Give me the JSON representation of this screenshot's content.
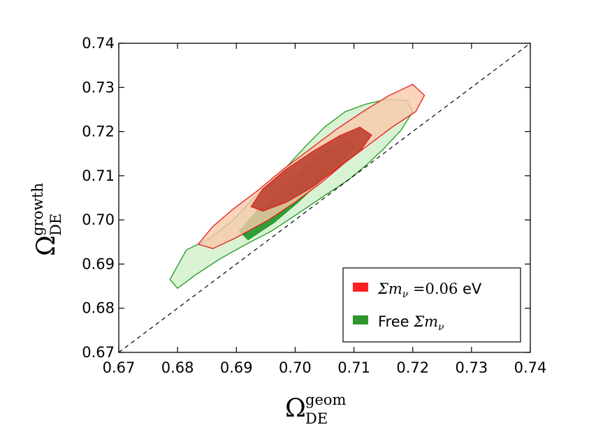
{
  "chart_data": {
    "type": "contour",
    "xlim": [
      0.67,
      0.74
    ],
    "ylim": [
      0.67,
      0.74
    ],
    "x_ticks": [
      "0.67",
      "0.68",
      "0.69",
      "0.70",
      "0.71",
      "0.72",
      "0.73",
      "0.74"
    ],
    "y_ticks": [
      "0.67",
      "0.68",
      "0.69",
      "0.70",
      "0.71",
      "0.72",
      "0.73",
      "0.74"
    ],
    "xlabel": {
      "base": "Ω",
      "sup": "geom",
      "sub": "DE"
    },
    "ylabel": {
      "base": "Ω",
      "sup": "growth",
      "sub": "DE"
    },
    "reference_line": {
      "style": "dashed",
      "from": [
        0.67,
        0.67
      ],
      "to": [
        0.74,
        0.74
      ]
    },
    "legend": {
      "position": "lower-right",
      "entries": [
        {
          "label_math": "Σm",
          "label_sub": "ν",
          "label_eq": " =0.06",
          "label_suffix": " eV",
          "color": "#ff2020"
        },
        {
          "label_prefix": "Free ",
          "label_math": "Σm",
          "label_sub": "ν",
          "color": "#2e962e"
        }
      ]
    },
    "series": [
      {
        "name": "Free Σmν 95%",
        "fill": "#d9f2d4",
        "stroke": "#1f9a1f",
        "points": [
          [
            0.6787,
            0.6865
          ],
          [
            0.6815,
            0.6932
          ],
          [
            0.6855,
            0.6958
          ],
          [
            0.6895,
            0.7
          ],
          [
            0.693,
            0.705
          ],
          [
            0.6975,
            0.7105
          ],
          [
            0.702,
            0.717
          ],
          [
            0.705,
            0.721
          ],
          [
            0.7085,
            0.7245
          ],
          [
            0.712,
            0.7262
          ],
          [
            0.7155,
            0.7273
          ],
          [
            0.719,
            0.727
          ],
          [
            0.72,
            0.7245
          ],
          [
            0.718,
            0.7203
          ],
          [
            0.715,
            0.716
          ],
          [
            0.712,
            0.7123
          ],
          [
            0.709,
            0.709
          ],
          [
            0.705,
            0.7055
          ],
          [
            0.7,
            0.701
          ],
          [
            0.696,
            0.6975
          ],
          [
            0.691,
            0.694
          ],
          [
            0.687,
            0.691
          ],
          [
            0.683,
            0.6875
          ],
          [
            0.68,
            0.6845
          ],
          [
            0.6787,
            0.6865
          ]
        ]
      },
      {
        "name": "Free Σmν 68%",
        "fill": "#2f9e3a",
        "stroke": "#1f9a1f",
        "points": [
          [
            0.6905,
            0.6975
          ],
          [
            0.6935,
            0.702
          ],
          [
            0.6965,
            0.7055
          ],
          [
            0.7,
            0.71
          ],
          [
            0.7035,
            0.714
          ],
          [
            0.707,
            0.717
          ],
          [
            0.7095,
            0.718
          ],
          [
            0.71,
            0.716
          ],
          [
            0.7075,
            0.713
          ],
          [
            0.7045,
            0.709
          ],
          [
            0.7005,
            0.704
          ],
          [
            0.6965,
            0.6995
          ],
          [
            0.692,
            0.6955
          ],
          [
            0.6905,
            0.6975
          ]
        ]
      },
      {
        "name": "Σmν=0.06 eV 95%",
        "fill": "#f9c9aa",
        "fill_opacity": 0.8,
        "stroke": "#e51d1d",
        "points": [
          [
            0.6835,
            0.6945
          ],
          [
            0.686,
            0.6985
          ],
          [
            0.6895,
            0.7025
          ],
          [
            0.6935,
            0.7065
          ],
          [
            0.698,
            0.7115
          ],
          [
            0.7025,
            0.716
          ],
          [
            0.707,
            0.7205
          ],
          [
            0.7115,
            0.7245
          ],
          [
            0.716,
            0.7282
          ],
          [
            0.72,
            0.7307
          ],
          [
            0.722,
            0.7282
          ],
          [
            0.7205,
            0.7245
          ],
          [
            0.7165,
            0.721
          ],
          [
            0.7125,
            0.717
          ],
          [
            0.7085,
            0.713
          ],
          [
            0.7045,
            0.7085
          ],
          [
            0.7,
            0.704
          ],
          [
            0.6955,
            0.7
          ],
          [
            0.69,
            0.696
          ],
          [
            0.686,
            0.6935
          ],
          [
            0.6835,
            0.6945
          ]
        ]
      },
      {
        "name": "Σmν=0.06 eV 68%",
        "fill": "#b83a2a",
        "fill_opacity": 0.85,
        "stroke": "#e51d1d",
        "points": [
          [
            0.6925,
            0.703
          ],
          [
            0.6945,
            0.707
          ],
          [
            0.6985,
            0.7115
          ],
          [
            0.703,
            0.7155
          ],
          [
            0.7075,
            0.719
          ],
          [
            0.711,
            0.721
          ],
          [
            0.713,
            0.7192
          ],
          [
            0.711,
            0.7155
          ],
          [
            0.707,
            0.7115
          ],
          [
            0.703,
            0.7075
          ],
          [
            0.6985,
            0.704
          ],
          [
            0.6945,
            0.702
          ],
          [
            0.6925,
            0.703
          ]
        ]
      }
    ]
  }
}
